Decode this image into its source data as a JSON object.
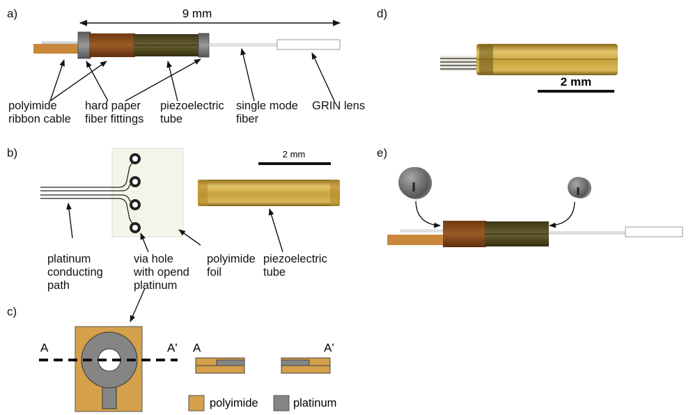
{
  "panels": {
    "a": "a)",
    "b": "b)",
    "c": "c)",
    "d": "d)",
    "e": "e)"
  },
  "panel_a": {
    "dimension": "9 mm",
    "labels": {
      "ribbon": "polyimide\nribbon cable",
      "fittings": "hard paper\nfiber fittings",
      "tube": "piezoelectric\ntube",
      "fiber": "single mode\nfiber",
      "lens": "GRIN lens"
    }
  },
  "panel_b": {
    "scale": "2 mm",
    "labels": {
      "path": "platinum\nconducting\npath",
      "via": "via hole\nwith opend\nplatinum",
      "foil": "polyimide\nfoil",
      "tube": "piezoelectric\ntube"
    }
  },
  "panel_c": {
    "section_left": "A",
    "section_right": "A'",
    "cross_left": "A",
    "cross_right": "A'",
    "legend": {
      "polyimide": "polyimide",
      "platinum": "platinum"
    }
  },
  "panel_d": {
    "scale": "2 mm"
  },
  "colors": {
    "polyimide": "#D4A04A",
    "platinum": "#858585",
    "fitting_brown": "#8B4E1E",
    "tube_olive": "#5C5428",
    "gold": "#C9A23C"
  }
}
